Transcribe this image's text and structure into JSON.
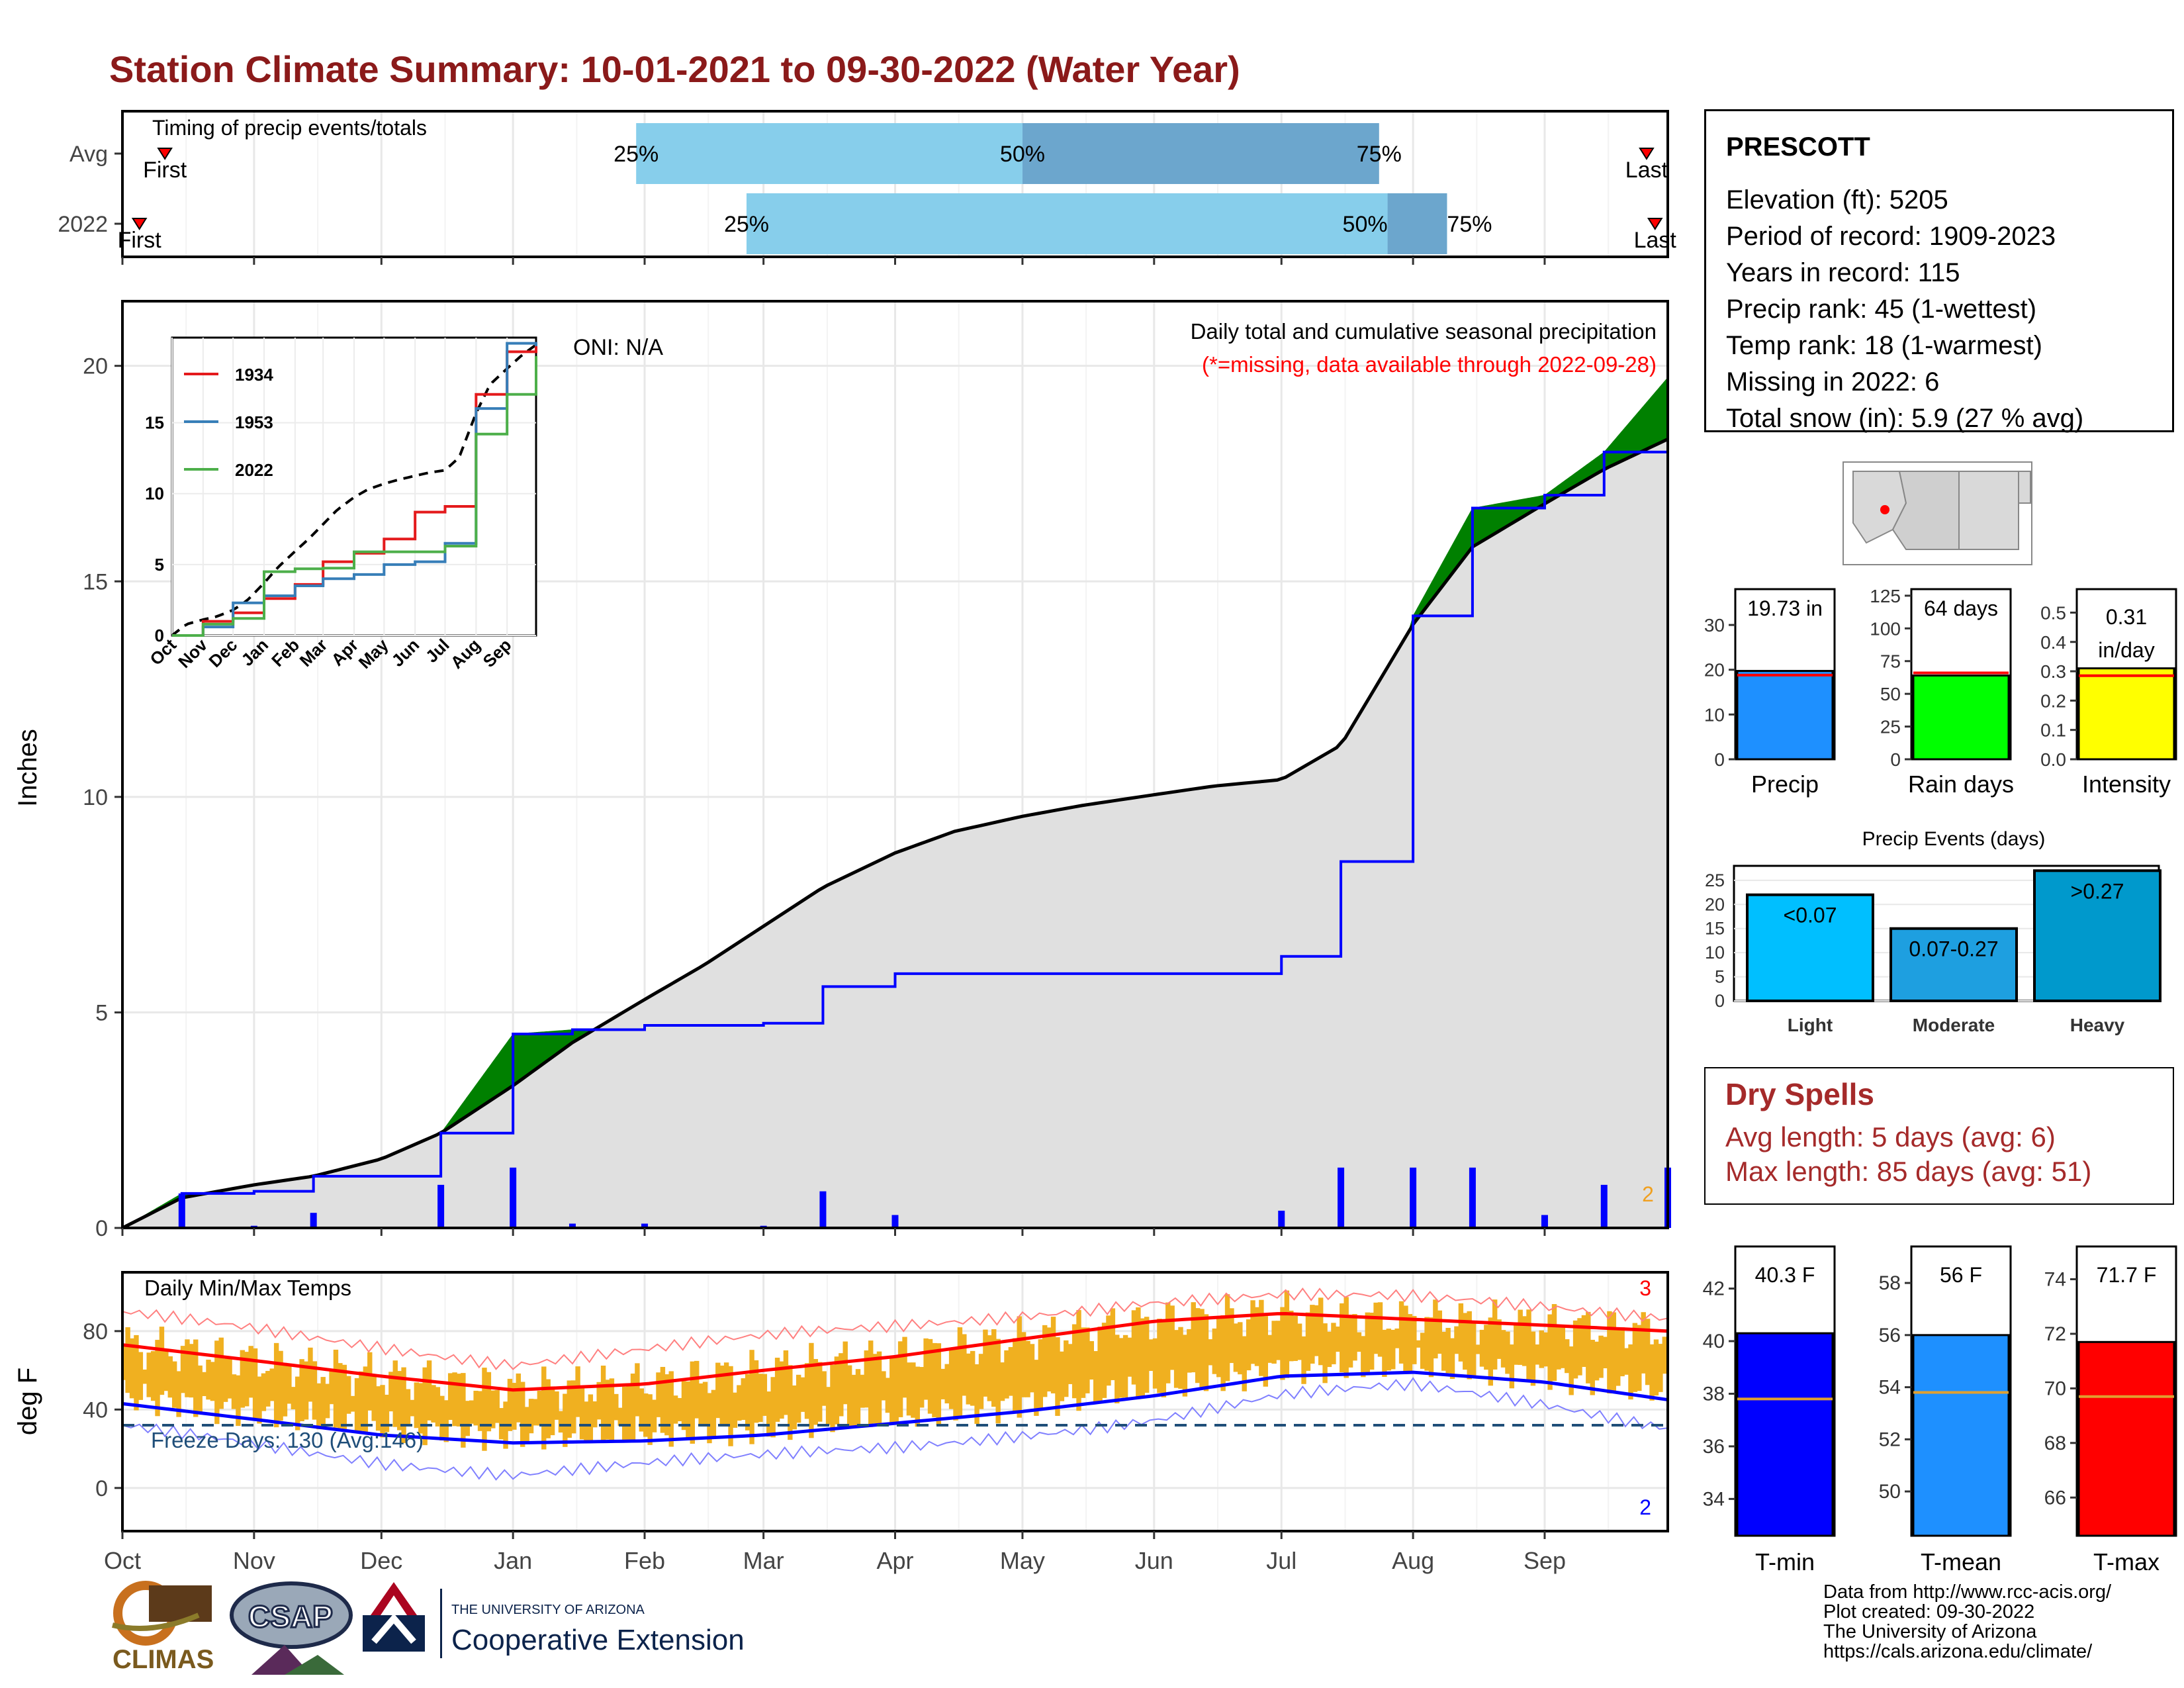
{
  "title": "Station Climate Summary: 10-01-2021 to 09-30-2022 (Water Year)",
  "colors": {
    "title": "#8B1A1A",
    "green": "#008000",
    "brown": "#8B5A00",
    "grey_fill": "#E0E0E0",
    "blue_line": "#0000FF",
    "light_blue": "#87CEEB",
    "mid_blue": "#6CA6CD",
    "temp_orange": "#F0B020",
    "red": "#FF0000",
    "dry_spell_text": "#A52A2A"
  },
  "timing": {
    "label": "Timing of precip events/totals",
    "rows": [
      "Avg",
      "2022"
    ],
    "first_label": "First",
    "last_label": "Last",
    "avg": {
      "first": "2021-10-11",
      "p25": "2022-01-30",
      "p50": "2022-05-01",
      "p75": "2022-07-24",
      "last": "2022-09-25"
    },
    "y2022": {
      "first": "2021-10-05",
      "p25": "2022-02-25",
      "p50": "2022-07-26",
      "p75": "2022-08-09",
      "last": "2022-09-27"
    },
    "pct_labels": [
      "25%",
      "50%",
      "75%"
    ]
  },
  "precip_panel": {
    "ylabel": "Inches",
    "oni": "ONI: N/A",
    "title": "Daily total and cumulative seasonal precipitation",
    "subtitle": "(*=missing, data available through 2022-09-28)",
    "yticks": [
      0,
      5,
      10,
      15,
      20
    ],
    "ylim": [
      0,
      21.5
    ],
    "year_count_label": "2"
  },
  "inset": {
    "legend": [
      "1934",
      "1953",
      "2022"
    ],
    "yticks": [
      0,
      5,
      10,
      15
    ],
    "months": [
      "Oct",
      "Nov",
      "Dec",
      "Jan",
      "Feb",
      "Mar",
      "Apr",
      "May",
      "Jun",
      "Jul",
      "Aug",
      "Sep"
    ]
  },
  "temp_panel": {
    "ylabel": "deg F",
    "title": "Daily Min/Max Temps",
    "freeze": "Freeze Days: 130 (Avg:146)",
    "max_records": "3",
    "min_records": "2",
    "yticks": [
      0,
      40,
      80
    ],
    "ylim": [
      -22,
      110
    ]
  },
  "months": [
    "Oct",
    "Nov",
    "Dec",
    "Jan",
    "Feb",
    "Mar",
    "Apr",
    "May",
    "Jun",
    "Jul",
    "Aug",
    "Sep"
  ],
  "station": {
    "name": "PRESCOTT",
    "lines": [
      "Elevation (ft): 5205",
      "Period of record: 1909-2023",
      "Years in record: 115",
      "Precip rank: 45 (1-wettest)",
      "Temp rank: 18 (1-warmest)",
      "Missing in 2022: 6",
      "Total snow (in): 5.9 (27 % avg)"
    ]
  },
  "gauges_precip": [
    {
      "name": "Precip",
      "label": "19.73 in",
      "value": 19.73,
      "avg": 18.8,
      "ylim": [
        0,
        38
      ],
      "ticks": [
        0,
        10,
        20,
        30
      ],
      "color": "#1E90FF"
    },
    {
      "name": "Rain days",
      "label": "64 days",
      "value": 64,
      "avg": 66,
      "ylim": [
        0,
        130
      ],
      "ticks": [
        0,
        25,
        50,
        75,
        100,
        125
      ],
      "color": "#00FF00"
    },
    {
      "name": "Intensity",
      "label": "0.31 in/day",
      "label_lines": [
        "0.31",
        "in/day"
      ],
      "value": 0.31,
      "avg": 0.285,
      "ylim": [
        0,
        0.58
      ],
      "ticks": [
        "0.0",
        "0.1",
        "0.2",
        "0.3",
        "0.4",
        "0.5"
      ],
      "color": "#FFFF00"
    }
  ],
  "events": {
    "title": "Precip Events (days)",
    "categories": [
      "Light",
      "Moderate",
      "Heavy"
    ],
    "labels": [
      "<0.07",
      "0.07-0.27",
      ">0.27"
    ],
    "values": [
      22,
      15,
      27
    ],
    "colors": [
      "#00BFFF",
      "#1E9FE0",
      "#0099CC"
    ],
    "ticks": [
      0,
      5,
      10,
      15,
      20,
      25
    ],
    "ylim": [
      0,
      28
    ]
  },
  "dry_spells": {
    "title": "Dry Spells",
    "avg": "Avg length: 5 days (avg: 6)",
    "max": "Max length: 85 days (avg: 51)"
  },
  "gauges_temp": [
    {
      "name": "T-min",
      "label": "40.3 F",
      "value": 40.3,
      "avg": 37.8,
      "ylim": [
        32.6,
        43.6
      ],
      "ticks": [
        34,
        36,
        38,
        40,
        42
      ],
      "color": "#0000FF"
    },
    {
      "name": "T-mean",
      "label": "56 F",
      "value": 56.0,
      "avg": 53.8,
      "ylim": [
        48.3,
        59.4
      ],
      "ticks": [
        50,
        52,
        54,
        56,
        58
      ],
      "color": "#1E90FF"
    },
    {
      "name": "T-max",
      "label": "71.7 F",
      "value": 71.7,
      "avg": 69.7,
      "ylim": [
        64.6,
        75.2
      ],
      "ticks": [
        66,
        68,
        70,
        72,
        74
      ],
      "color": "#FF0000"
    }
  ],
  "footer": [
    "Data from http://www.rcc-acis.org/",
    "Plot created: 09-30-2022",
    "The University of Arizona",
    "https://cals.arizona.edu/climate/"
  ],
  "logos": {
    "climas": "CLIMAS",
    "csap": "CSAP",
    "ua_small": "THE UNIVERSITY OF ARIZONA",
    "ua_big": "Cooperative Extension"
  },
  "chart_data": [
    {
      "type": "area",
      "title": "Daily total and cumulative seasonal precipitation",
      "ylabel": "Inches",
      "x": [
        "2021-10-01",
        "2021-10-15",
        "2021-11-01",
        "2021-11-15",
        "2021-12-01",
        "2021-12-15",
        "2022-01-01",
        "2022-01-15",
        "2022-02-01",
        "2022-02-15",
        "2022-03-01",
        "2022-03-15",
        "2022-04-01",
        "2022-04-15",
        "2022-05-01",
        "2022-05-15",
        "2022-06-01",
        "2022-06-15",
        "2022-07-01",
        "2022-07-15",
        "2022-08-01",
        "2022-08-15",
        "2022-09-01",
        "2022-09-15",
        "2022-09-30"
      ],
      "series": [
        {
          "values": [
            0.0,
            0.7,
            1.0,
            1.2,
            1.6,
            2.2,
            3.3,
            4.3,
            5.3,
            6.1,
            7.0,
            7.9,
            8.7,
            9.2,
            9.55,
            9.8,
            10.05,
            10.25,
            10.4,
            11.2,
            14.0,
            15.8,
            16.8,
            17.6,
            18.3
          ]
        },
        {
          "values": [
            0.0,
            0.8,
            0.85,
            1.2,
            1.2,
            2.2,
            4.5,
            4.6,
            4.7,
            4.7,
            4.75,
            5.6,
            5.9,
            5.9,
            5.9,
            5.9,
            5.9,
            5.9,
            6.3,
            8.5,
            14.2,
            16.7,
            17.0,
            18.0,
            19.73
          ]
        }
      ],
      "ylim": [
        0,
        21.5
      ]
    },
    {
      "type": "line",
      "title": "Daily Min/Max Temps",
      "ylabel": "deg F",
      "x": [
        "2021-10-01",
        "2021-11-01",
        "2021-12-01",
        "2022-01-01",
        "2022-02-01",
        "2022-03-01",
        "2022-04-01",
        "2022-05-01",
        "2022-06-01",
        "2022-07-01",
        "2022-08-01",
        "2022-09-01",
        "2022-09-30"
      ],
      "series": [
        {
          "values": [
            73,
            65,
            57,
            50,
            53,
            60,
            67,
            76,
            85,
            89,
            86,
            83,
            80
          ]
        },
        {
          "values": [
            43,
            35,
            27,
            23,
            24,
            27,
            33,
            39,
            47,
            57,
            59,
            54,
            45
          ]
        },
        {
          "values": [
            88,
            81,
            73,
            64,
            70,
            76,
            82,
            89,
            96,
            98,
            96,
            92,
            88
          ]
        },
        {
          "values": [
            30,
            22,
            14,
            8,
            12,
            15,
            20,
            28,
            36,
            47,
            51,
            42,
            32
          ]
        }
      ],
      "ylim": [
        -22,
        110
      ]
    },
    {
      "type": "line",
      "x": [
        "2021-10-01",
        "2021-11-01",
        "2021-12-01",
        "2022-01-01",
        "2022-02-01",
        "2022-03-01",
        "2022-04-01",
        "2022-05-01",
        "2022-06-01",
        "2022-07-01",
        "2022-08-01",
        "2022-09-01",
        "2022-09-30"
      ],
      "series": [
        {
          "name": "1934",
          "values": [
            0,
            1.0,
            1.6,
            2.6,
            3.6,
            5.2,
            5.8,
            6.8,
            8.7,
            9.1,
            17.0,
            20.0,
            20.4
          ]
        },
        {
          "name": "1953",
          "values": [
            0,
            0.6,
            2.3,
            2.8,
            3.5,
            4.0,
            4.3,
            5.0,
            5.2,
            6.5,
            16.0,
            20.6,
            20.4
          ]
        },
        {
          "name": "2022",
          "values": [
            0,
            0.8,
            1.2,
            4.5,
            4.7,
            4.75,
            5.9,
            5.9,
            5.9,
            6.3,
            14.2,
            17.0,
            19.7
          ]
        }
      ],
      "ylim": [
        0,
        20
      ]
    },
    {
      "type": "bar",
      "title": "Precip Events (days)",
      "categories": [
        "Light",
        "Moderate",
        "Heavy"
      ],
      "values": [
        22,
        15,
        27
      ],
      "ylim": [
        0,
        28
      ]
    }
  ]
}
